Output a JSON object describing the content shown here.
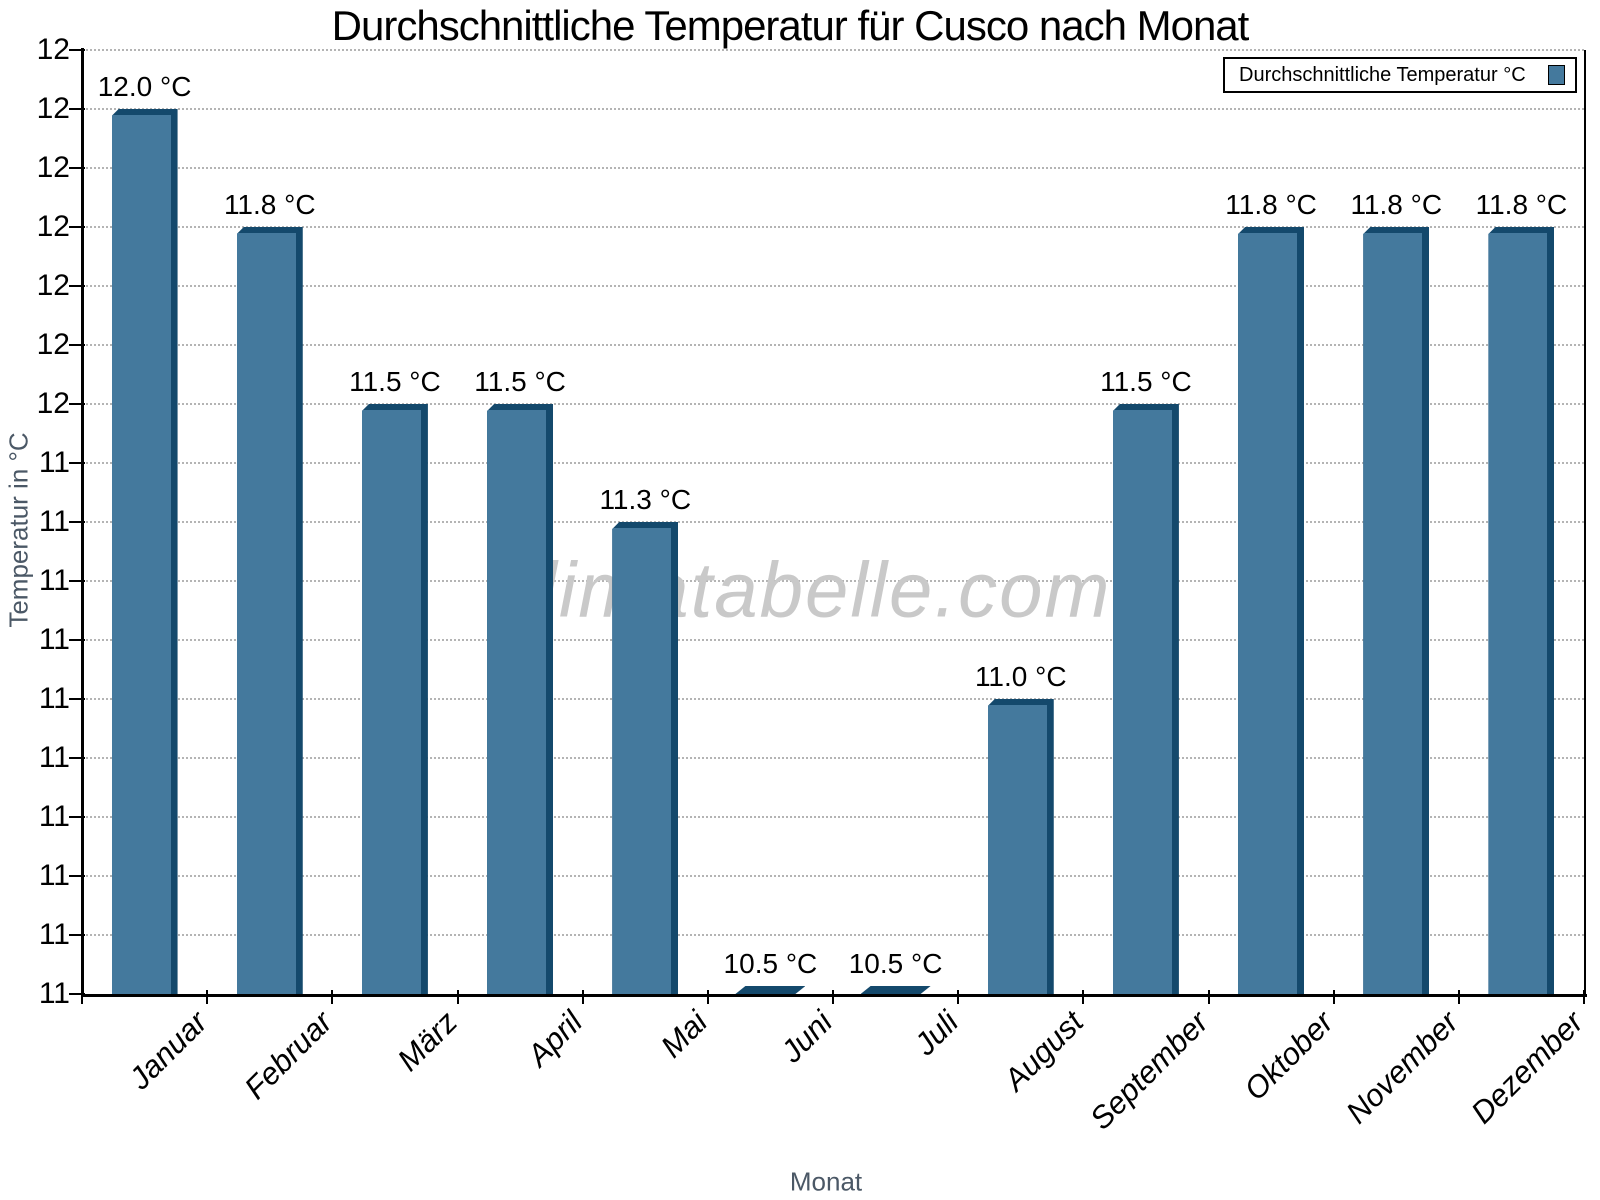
{
  "chart_data": {
    "type": "bar",
    "title": "Durchschnittliche Temperatur für Cusco nach Monat",
    "xlabel": "Monat",
    "ylabel": "Temperatur in °C",
    "watermark": "klimatabelle.com",
    "legend": {
      "label": "Durchschnittliche Temperatur °C",
      "position": "top-right"
    },
    "categories": [
      "Januar",
      "Februar",
      "März",
      "April",
      "Mai",
      "Juni",
      "Juli",
      "August",
      "September",
      "Oktober",
      "November",
      "Dezember"
    ],
    "values": [
      12.0,
      11.8,
      11.5,
      11.5,
      11.3,
      10.5,
      10.5,
      11.0,
      11.5,
      11.8,
      11.8,
      11.8
    ],
    "bar_labels": [
      "12.0 °C",
      "11.8 °C",
      "11.5 °C",
      "11.5 °C",
      "11.3 °C",
      "10.5 °C",
      "10.5 °C",
      "11.0 °C",
      "11.5 °C",
      "11.8 °C",
      "11.8 °C",
      "11.8 °C"
    ],
    "ylim": [
      10.5,
      12.1
    ],
    "ytick_step": 0.1,
    "ytick_display_labels": [
      "11",
      "11",
      "11",
      "11",
      "11",
      "11",
      "11",
      "11",
      "11",
      "11",
      "12",
      "12",
      "12",
      "12",
      "12",
      "12",
      "12"
    ],
    "grid": "horizontal-dotted",
    "colors": {
      "bar_face": "#44799D",
      "bar_edge": "#14496C",
      "grid": "#B4B4B4",
      "axis": "#000000",
      "axis_title": "#4B5866",
      "watermark": "#C9C9C9"
    }
  }
}
